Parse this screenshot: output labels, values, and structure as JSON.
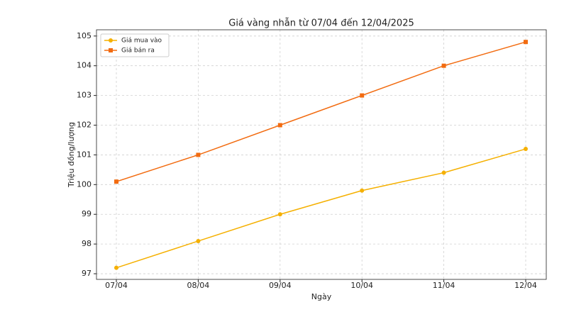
{
  "chart_data": {
    "type": "line",
    "title": "Giá vàng nhẫn từ 07/04 đến 12/04/2025",
    "x_label": "Ngày",
    "y_label": "Triệu đồng/lượng",
    "categories": [
      "07/04",
      "08/04",
      "09/04",
      "10/04",
      "11/04",
      "12/04"
    ],
    "series": [
      {
        "name": "Giá mua vào",
        "color": "#f5b000",
        "marker": "circle",
        "values": [
          97.2,
          98.1,
          99.0,
          99.8,
          100.4,
          101.2
        ]
      },
      {
        "name": "Giá bán ra",
        "color": "#f26b10",
        "marker": "square",
        "values": [
          100.1,
          101.0,
          102.0,
          103.0,
          104.0,
          104.8
        ]
      }
    ],
    "ylim": [
      96.81,
      105.21
    ],
    "yticks": [
      97,
      98,
      99,
      100,
      101,
      102,
      103,
      104,
      105
    ],
    "grid": true,
    "legend": "upper left"
  }
}
